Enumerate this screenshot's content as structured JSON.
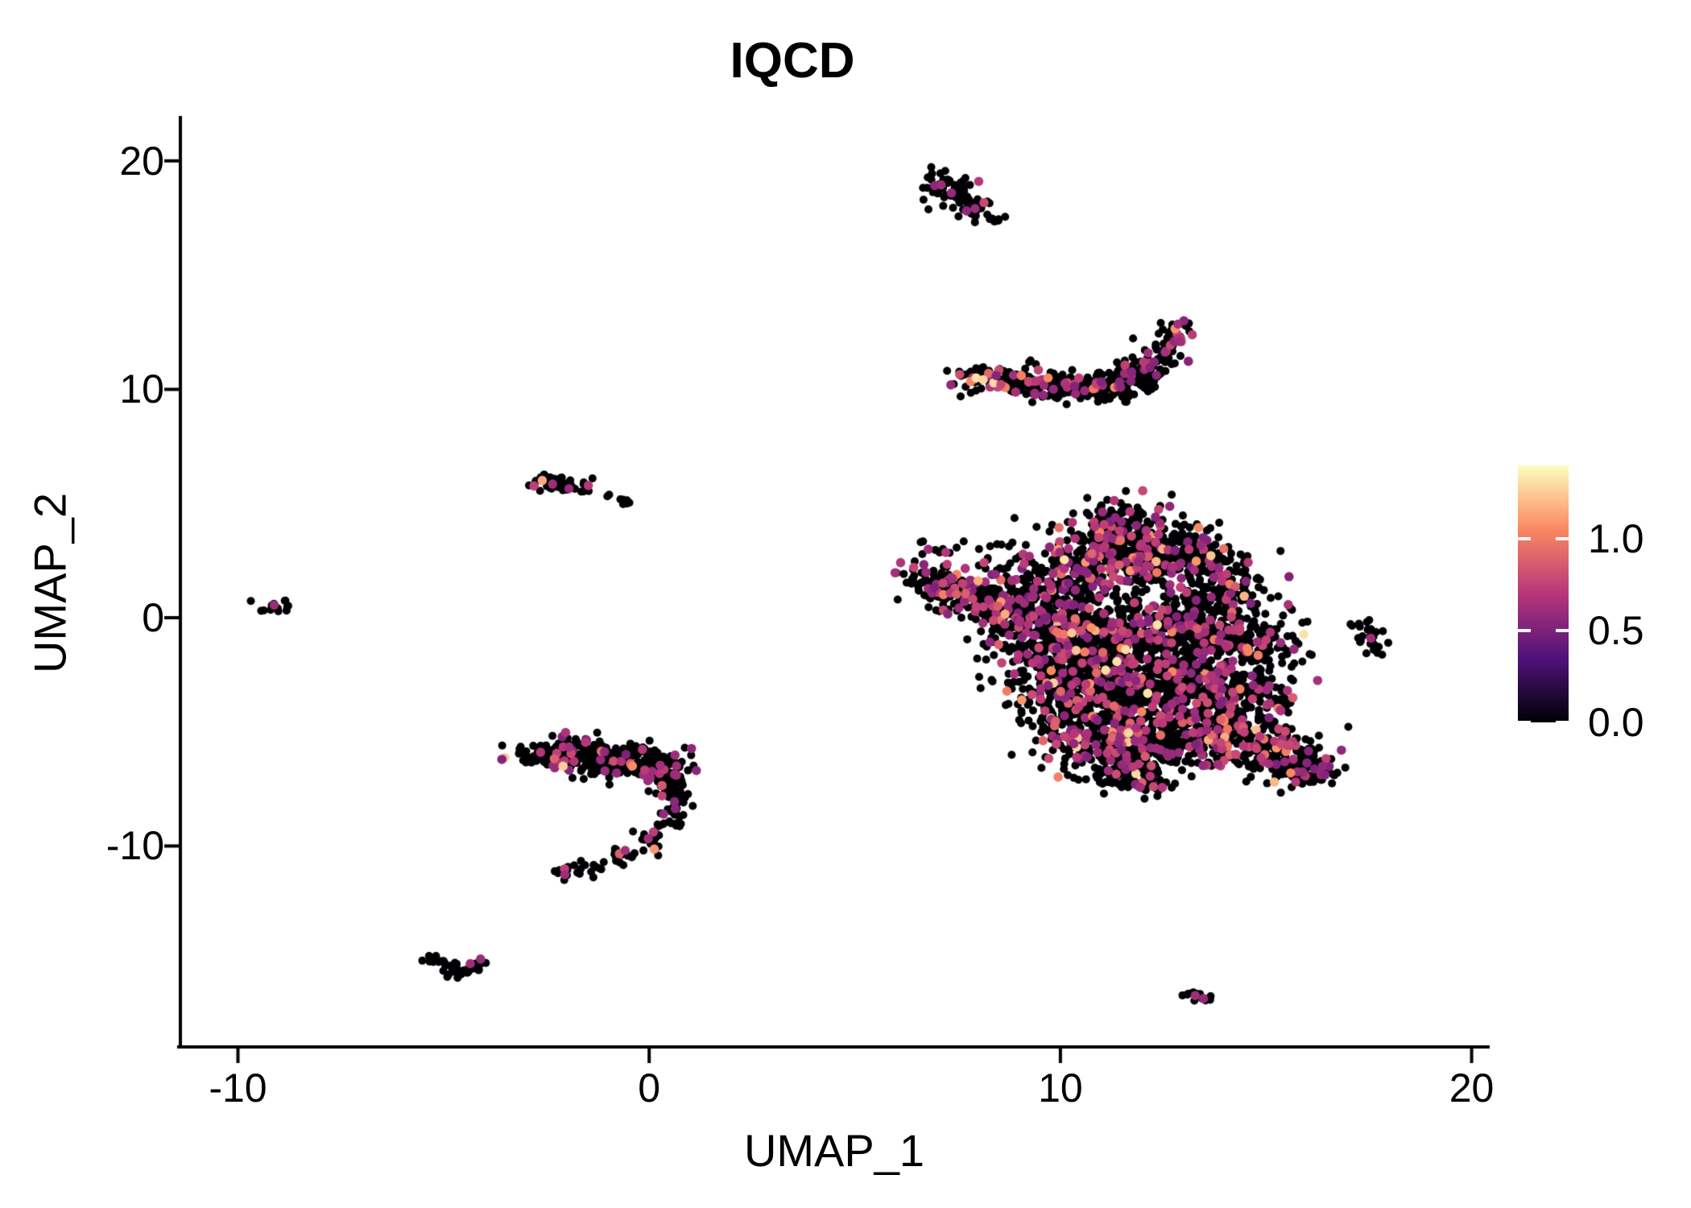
{
  "chart_data": {
    "type": "scatter",
    "title": "IQCD",
    "xlabel": "UMAP_1",
    "ylabel": "UMAP_2",
    "xlim": [
      -11.4,
      20.4
    ],
    "ylim": [
      -18.8,
      21.9
    ],
    "xticks": [
      -10,
      0,
      10,
      20
    ],
    "yticks": [
      -10,
      0,
      10,
      20
    ],
    "grid": false,
    "background": "#ffffff",
    "axis_color": "#000000",
    "point_radius_px": 5,
    "colored_point_radius_px": 5.8,
    "colorbar": {
      "position": "right",
      "tick_labels": [
        "1.0",
        "0.5",
        "0.0"
      ],
      "tick_values": [
        1.0,
        0.5,
        0.0
      ],
      "vmin": 0,
      "vmax": 1.4,
      "palette": "magma",
      "stops": [
        "#000004",
        "#50127b",
        "#b63679",
        "#fb8761",
        "#fcfdbf"
      ]
    },
    "clusters": [
      {
        "name": "comet-top",
        "frac_colored": 0.05,
        "blobs": [
          [
            7.25,
            18.85,
            0.33,
            0.42,
            55
          ],
          [
            7.7,
            18.25,
            0.22,
            0.28,
            18
          ],
          [
            8.05,
            17.85,
            0.18,
            0.2,
            12
          ],
          [
            8.45,
            17.5,
            0.14,
            0.14,
            8
          ]
        ],
        "specials": [
          [
            7.1,
            18.95,
            0.62
          ],
          [
            7.35,
            18.6,
            0.58
          ]
        ]
      },
      {
        "name": "crescent",
        "frac_colored": 0.17,
        "blobs": [
          [
            7.8,
            10.55,
            0.22,
            0.18,
            16
          ],
          [
            8.35,
            10.45,
            0.35,
            0.28,
            40
          ],
          [
            9.1,
            10.35,
            0.45,
            0.32,
            60
          ],
          [
            9.9,
            10.15,
            0.5,
            0.32,
            65
          ],
          [
            10.7,
            10.1,
            0.5,
            0.32,
            65
          ],
          [
            11.4,
            10.3,
            0.4,
            0.38,
            55
          ],
          [
            12.0,
            10.75,
            0.3,
            0.42,
            45
          ],
          [
            12.45,
            11.5,
            0.25,
            0.45,
            40
          ],
          [
            12.75,
            12.3,
            0.2,
            0.35,
            28
          ],
          [
            12.95,
            12.7,
            0.13,
            0.15,
            10
          ]
        ],
        "specials": [
          [
            7.95,
            10.5,
            1.32
          ],
          [
            8.12,
            10.42,
            1.28
          ],
          [
            9.05,
            10.6,
            1.02
          ],
          [
            9.7,
            10.5,
            1.05
          ],
          [
            12.9,
            12.1,
            0.62
          ]
        ]
      },
      {
        "name": "left-small-blob",
        "frac_colored": 0.1,
        "blobs": [
          [
            -2.25,
            5.95,
            0.3,
            0.18,
            26
          ],
          [
            -1.85,
            5.7,
            0.22,
            0.14,
            14
          ]
        ],
        "specials": [
          [
            -2.35,
            5.85,
            0.62
          ],
          [
            -1.95,
            5.65,
            0.6
          ]
        ]
      },
      {
        "name": "left-small-dots",
        "frac_colored": 0,
        "blobs": [
          [
            -0.95,
            5.35,
            0.05,
            0.05,
            2
          ],
          [
            -0.6,
            5.1,
            0.14,
            0.08,
            7
          ]
        ],
        "specials": []
      },
      {
        "name": "far-left-dot",
        "frac_colored": 0,
        "blobs": [
          [
            -9.1,
            0.5,
            0.28,
            0.17,
            13
          ]
        ],
        "specials": [
          [
            -9.12,
            0.55,
            0.6
          ]
        ]
      },
      {
        "name": "wishbone",
        "frac_colored": 0.11,
        "blobs": [
          [
            -2.5,
            -6.15,
            0.42,
            0.33,
            65
          ],
          [
            -1.75,
            -5.95,
            0.5,
            0.4,
            85
          ],
          [
            -0.95,
            -6.05,
            0.5,
            0.4,
            80
          ],
          [
            -0.2,
            -6.3,
            0.45,
            0.4,
            70
          ],
          [
            0.45,
            -6.55,
            0.35,
            0.35,
            45
          ],
          [
            0.55,
            -7.3,
            0.25,
            0.3,
            26
          ],
          [
            0.7,
            -8.1,
            0.2,
            0.32,
            20
          ],
          [
            0.55,
            -8.95,
            0.2,
            0.3,
            18
          ],
          [
            0.1,
            -9.65,
            0.25,
            0.25,
            16
          ],
          [
            -0.6,
            -10.35,
            0.3,
            0.24,
            16
          ],
          [
            -1.4,
            -10.9,
            0.3,
            0.2,
            14
          ],
          [
            -2.0,
            -11.2,
            0.18,
            0.14,
            10
          ]
        ],
        "specials": [
          [
            -2.05,
            -11.25,
            0.62
          ],
          [
            0.35,
            -8.6,
            0.58
          ]
        ]
      },
      {
        "name": "checkmark-bottom-left",
        "frac_colored": 0,
        "blobs": [
          [
            -5.3,
            -14.95,
            0.18,
            0.14,
            10
          ],
          [
            -5.0,
            -15.3,
            0.18,
            0.14,
            10
          ],
          [
            -4.7,
            -15.55,
            0.17,
            0.12,
            10
          ],
          [
            -4.4,
            -15.45,
            0.15,
            0.12,
            8
          ],
          [
            -4.15,
            -15.15,
            0.12,
            0.12,
            6
          ]
        ],
        "specials": [
          [
            -4.35,
            -15.15,
            0.62
          ],
          [
            -4.1,
            -14.95,
            0.6
          ]
        ]
      },
      {
        "name": "main-mass",
        "frac_colored": 0.18,
        "blobs": [
          [
            6.55,
            1.95,
            0.25,
            0.3,
            15
          ],
          [
            7.05,
            1.5,
            0.35,
            0.35,
            40
          ],
          [
            7.65,
            1.05,
            0.45,
            0.4,
            70
          ],
          [
            8.35,
            0.65,
            0.5,
            0.45,
            95
          ],
          [
            7.1,
            2.7,
            0.55,
            0.5,
            16
          ],
          [
            9.35,
            1.0,
            0.8,
            0.8,
            175
          ],
          [
            10.45,
            2.1,
            0.9,
            0.85,
            240
          ],
          [
            11.45,
            3.2,
            0.7,
            0.75,
            200
          ],
          [
            11.3,
            4.35,
            0.4,
            0.4,
            45
          ],
          [
            12.5,
            2.9,
            0.7,
            0.65,
            175
          ],
          [
            13.4,
            2.2,
            0.6,
            0.6,
            115
          ],
          [
            14.1,
            1.3,
            0.5,
            0.55,
            80
          ],
          [
            9.45,
            -0.7,
            0.7,
            0.8,
            155
          ],
          [
            10.35,
            -1.6,
            0.8,
            0.9,
            195
          ],
          [
            11.55,
            -0.9,
            0.9,
            0.9,
            235
          ],
          [
            12.75,
            -0.3,
            0.8,
            0.8,
            195
          ],
          [
            13.85,
            -0.7,
            0.7,
            0.8,
            155
          ],
          [
            14.85,
            -1.3,
            0.5,
            0.7,
            85
          ],
          [
            9.95,
            -3.2,
            0.7,
            0.8,
            145
          ],
          [
            11.05,
            -3.6,
            0.8,
            0.8,
            195
          ],
          [
            12.25,
            -3.1,
            0.8,
            0.8,
            195
          ],
          [
            13.45,
            -2.9,
            0.7,
            0.8,
            165
          ],
          [
            14.55,
            -3.4,
            0.6,
            0.7,
            115
          ],
          [
            10.65,
            -5.2,
            0.7,
            0.7,
            145
          ],
          [
            11.75,
            -5.7,
            0.8,
            0.6,
            175
          ],
          [
            12.85,
            -5.1,
            0.7,
            0.7,
            165
          ],
          [
            13.95,
            -5.0,
            0.6,
            0.6,
            125
          ],
          [
            11.35,
            -6.9,
            0.5,
            0.4,
            55
          ],
          [
            12.05,
            -7.2,
            0.4,
            0.3,
            38
          ],
          [
            14.95,
            -5.8,
            0.6,
            0.5,
            110
          ],
          [
            15.7,
            -6.3,
            0.45,
            0.45,
            85
          ],
          [
            16.2,
            -6.8,
            0.3,
            0.3,
            45
          ]
        ],
        "specials": [
          [
            15.6,
            -6.8,
            1.05
          ],
          [
            11.1,
            -2.3,
            1.3
          ]
        ]
      },
      {
        "name": "right-small-blob",
        "frac_colored": 0,
        "blobs": [
          [
            17.45,
            -0.45,
            0.2,
            0.2,
            9
          ],
          [
            17.6,
            -0.95,
            0.22,
            0.28,
            14
          ],
          [
            17.1,
            -0.3,
            0.1,
            0.08,
            3
          ],
          [
            17.7,
            -1.55,
            0.1,
            0.12,
            4
          ]
        ],
        "specials": [
          [
            17.55,
            -0.9,
            0.62
          ]
        ]
      },
      {
        "name": "bottom-right-tiny",
        "frac_colored": 0,
        "blobs": [
          [
            13.25,
            -16.5,
            0.18,
            0.1,
            8
          ],
          [
            13.5,
            -16.72,
            0.13,
            0.09,
            6
          ]
        ],
        "specials": [
          [
            13.28,
            -16.55,
            0.62
          ],
          [
            13.48,
            -16.68,
            0.58
          ]
        ]
      }
    ]
  }
}
